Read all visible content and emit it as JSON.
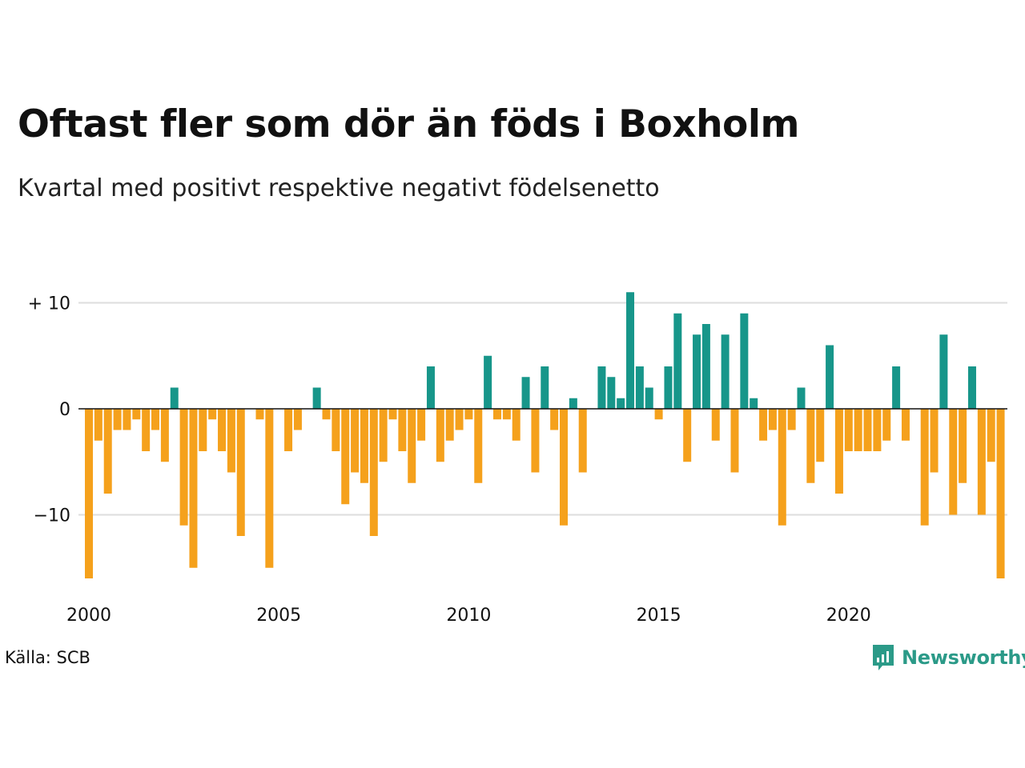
{
  "title": "Oftast fler som dör än föds i Boxholm",
  "subtitle": "Kvartal med positivt respektive negativt födelsenetto",
  "source": "Källa: SCB",
  "brand": "Newsworthy",
  "colors": {
    "positive": "#17968a",
    "negative": "#f5a11c",
    "grid": "#dddddd",
    "brand": "#2b9a88"
  },
  "chart_data": {
    "type": "bar",
    "x_start": "2000 Q1",
    "frequency": "quarterly",
    "values": [
      -16,
      -3,
      -8,
      -2,
      -2,
      -1,
      -4,
      -2,
      -5,
      2,
      -11,
      -15,
      -4,
      -1,
      -4,
      -6,
      -12,
      0,
      -1,
      -15,
      0,
      -4,
      -2,
      0,
      2,
      -1,
      -4,
      -9,
      -6,
      -7,
      -12,
      -5,
      -1,
      -4,
      -7,
      -3,
      4,
      -5,
      -3,
      -2,
      -1,
      -7,
      5,
      -1,
      -1,
      -3,
      3,
      -6,
      4,
      -2,
      -11,
      1,
      -6,
      0,
      4,
      3,
      1,
      11,
      4,
      2,
      -1,
      4,
      9,
      -5,
      7,
      8,
      -3,
      7,
      -6,
      9,
      1,
      -3,
      -2,
      -11,
      -2,
      2,
      -7,
      -5,
      6,
      -8,
      -4,
      -4,
      -4,
      -4,
      -3,
      4,
      -3,
      0,
      -11,
      -6,
      7,
      -10,
      -7,
      4,
      -10,
      -5,
      -16
    ],
    "y_ticks": [
      {
        "value": 10,
        "label": "+ 10"
      },
      {
        "value": 0,
        "label": "0"
      },
      {
        "value": -10,
        "label": "−10"
      }
    ],
    "x_ticks": [
      "2000",
      "2005",
      "2010",
      "2015",
      "2020"
    ],
    "ylim": [
      -16,
      11
    ],
    "grid": true,
    "legend": "none"
  }
}
